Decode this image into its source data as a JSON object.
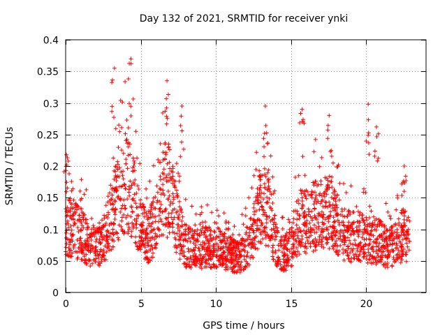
{
  "chart_data": {
    "type": "scatter",
    "title": "Day 132 of 2021, SRMTID for receiver ynki",
    "xlabel": "GPS time / hours",
    "ylabel": "SRMTID / TECUs",
    "xlim": [
      0,
      24
    ],
    "ylim": [
      0,
      0.4
    ],
    "x_ticks": [
      0,
      5,
      10,
      15,
      20
    ],
    "x_tick_labels": [
      "0",
      "5",
      "10",
      "15",
      "20"
    ],
    "y_ticks": [
      0,
      0.05,
      0.1,
      0.15,
      0.2,
      0.25,
      0.3,
      0.35,
      0.4
    ],
    "y_tick_labels": [
      "0",
      "0.05",
      "0.1",
      "0.15",
      "0.2",
      "0.25",
      "0.3",
      "0.35",
      "0.4"
    ],
    "grid": true,
    "marker": "+",
    "marker_color": "#ff0000",
    "data_range_hours": [
      0,
      22.9
    ],
    "profile": [
      [
        0.0,
        0.115
      ],
      [
        0.5,
        0.11
      ],
      [
        1.0,
        0.1
      ],
      [
        1.5,
        0.085
      ],
      [
        2.0,
        0.08
      ],
      [
        2.5,
        0.085
      ],
      [
        3.0,
        0.13
      ],
      [
        3.5,
        0.16
      ],
      [
        4.0,
        0.19
      ],
      [
        4.5,
        0.17
      ],
      [
        5.0,
        0.11
      ],
      [
        5.5,
        0.09
      ],
      [
        6.0,
        0.12
      ],
      [
        6.5,
        0.18
      ],
      [
        7.0,
        0.17
      ],
      [
        7.5,
        0.11
      ],
      [
        8.0,
        0.08
      ],
      [
        8.5,
        0.075
      ],
      [
        9.0,
        0.075
      ],
      [
        9.5,
        0.078
      ],
      [
        10.0,
        0.075
      ],
      [
        10.5,
        0.07
      ],
      [
        11.0,
        0.065
      ],
      [
        11.5,
        0.06
      ],
      [
        12.0,
        0.075
      ],
      [
        12.5,
        0.1
      ],
      [
        13.0,
        0.15
      ],
      [
        13.5,
        0.14
      ],
      [
        14.0,
        0.085
      ],
      [
        14.5,
        0.065
      ],
      [
        15.0,
        0.075
      ],
      [
        15.5,
        0.12
      ],
      [
        16.0,
        0.12
      ],
      [
        16.5,
        0.13
      ],
      [
        17.0,
        0.135
      ],
      [
        17.5,
        0.14
      ],
      [
        18.0,
        0.12
      ],
      [
        18.5,
        0.1
      ],
      [
        19.0,
        0.095
      ],
      [
        19.5,
        0.095
      ],
      [
        20.0,
        0.09
      ],
      [
        20.5,
        0.09
      ],
      [
        21.0,
        0.085
      ],
      [
        21.5,
        0.075
      ],
      [
        22.0,
        0.08
      ],
      [
        22.5,
        0.1
      ],
      [
        22.9,
        0.09
      ]
    ],
    "peaks": [
      [
        0.05,
        0.218
      ],
      [
        3.25,
        0.355
      ],
      [
        4.35,
        0.37
      ],
      [
        6.75,
        0.335
      ],
      [
        7.75,
        0.295
      ],
      [
        13.3,
        0.295
      ],
      [
        15.75,
        0.29
      ],
      [
        17.55,
        0.28
      ],
      [
        20.15,
        0.298
      ],
      [
        20.7,
        0.262
      ],
      [
        22.55,
        0.2
      ]
    ],
    "point_count": 2400
  }
}
